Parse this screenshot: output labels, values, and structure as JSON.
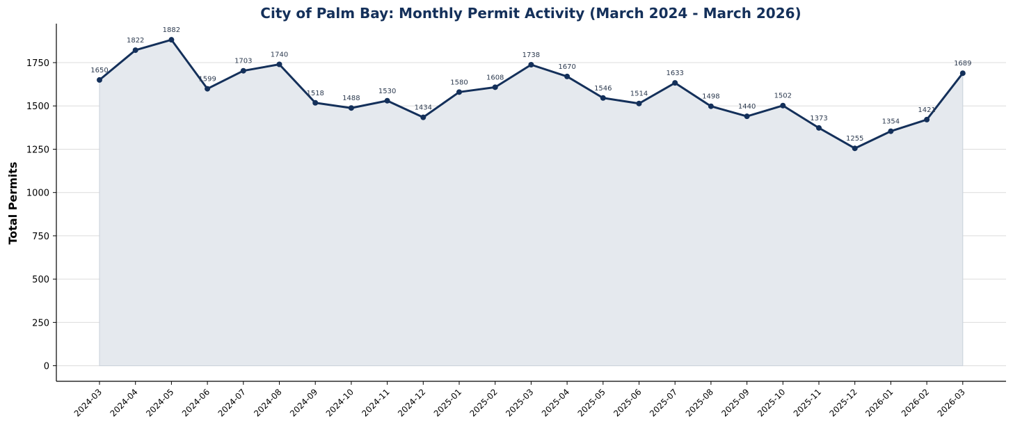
{
  "colors": {
    "title": "#14305a",
    "line": "#14305a",
    "area": "#e5e9ee",
    "grid": "#dcdcdc",
    "label": "#2c3a4f"
  },
  "chart_data": {
    "type": "line",
    "title": "City of Palm Bay: Monthly Permit Activity (March 2024 - March 2026)",
    "xlabel": "",
    "ylabel": "Total Permits",
    "ylim": [
      -90,
      1975
    ],
    "yticks": [
      0,
      250,
      500,
      750,
      1000,
      1250,
      1500,
      1750
    ],
    "grid": "horizontal",
    "area_fill": true,
    "categories": [
      "2024-03",
      "2024-04",
      "2024-05",
      "2024-06",
      "2024-07",
      "2024-08",
      "2024-09",
      "2024-10",
      "2024-11",
      "2024-12",
      "2025-01",
      "2025-02",
      "2025-03",
      "2025-04",
      "2025-05",
      "2025-06",
      "2025-07",
      "2025-08",
      "2025-09",
      "2025-10",
      "2025-11",
      "2025-12",
      "2026-01",
      "2026-02",
      "2026-03"
    ],
    "values": [
      1650,
      1822,
      1882,
      1599,
      1703,
      1740,
      1518,
      1488,
      1530,
      1434,
      1580,
      1608,
      1738,
      1670,
      1546,
      1514,
      1633,
      1498,
      1440,
      1502,
      1373,
      1255,
      1354,
      1421,
      1689
    ]
  }
}
